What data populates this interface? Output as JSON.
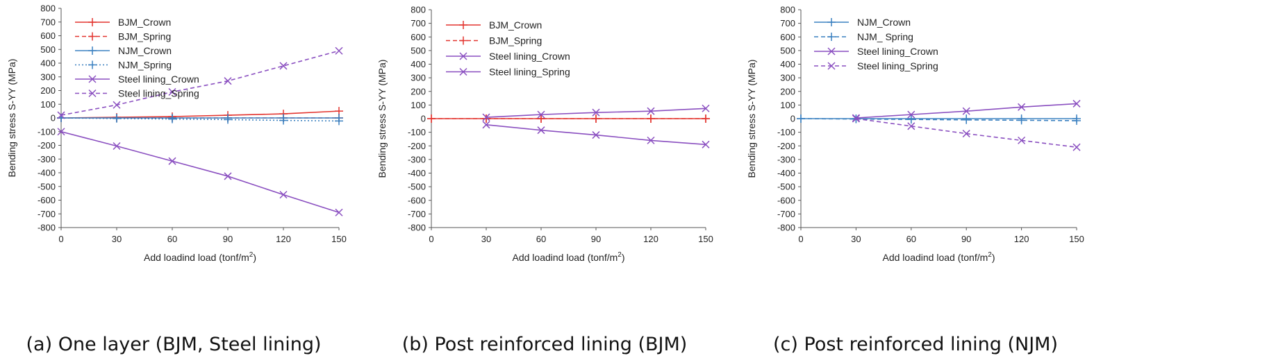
{
  "chart_data": [
    {
      "type": "line",
      "caption": "(a) One layer (BJM, Steel lining)",
      "xlabel": "Add loadind load (tonf/m",
      "xlabel_sup": "2",
      "xlabel_end": ")",
      "ylabel": "Bending stress S-YY (MPa)",
      "x": [
        0,
        30,
        60,
        90,
        120,
        150
      ],
      "xticks": [
        "0",
        "30",
        "60",
        "90",
        "120",
        "150"
      ],
      "ylim": [
        -800,
        800
      ],
      "yticks": [
        800,
        700,
        600,
        500,
        400,
        300,
        200,
        100,
        0,
        -100,
        -200,
        -300,
        -400,
        -500,
        -600,
        -700,
        -800
      ],
      "series": [
        {
          "name": "BJM_Crown",
          "values": [
            0,
            5,
            10,
            20,
            30,
            50
          ],
          "color": "#e3342f",
          "dash": "none",
          "marker": "plus"
        },
        {
          "name": "BJM_Spring",
          "values": [
            0,
            0,
            0,
            0,
            0,
            0
          ],
          "color": "#e3342f",
          "dash": "6,4",
          "marker": "plus"
        },
        {
          "name": "NJM_Crown",
          "values": [
            0,
            0,
            0,
            0,
            0,
            0
          ],
          "color": "#3a80c0",
          "dash": "none",
          "marker": "plus"
        },
        {
          "name": "NJM_Spring",
          "values": [
            0,
            -4,
            -8,
            -12,
            -18,
            -22
          ],
          "color": "#3a80c0",
          "dash": "2,3",
          "marker": "plus"
        },
        {
          "name": "Steel lining_Crown",
          "values": [
            -100,
            -205,
            -315,
            -425,
            -560,
            -690
          ],
          "color": "#8a4fc0",
          "dash": "none",
          "marker": "x"
        },
        {
          "name": "Steel lining_Spring",
          "values": [
            20,
            95,
            190,
            270,
            380,
            490
          ],
          "color": "#8a4fc0",
          "dash": "6,4",
          "marker": "x"
        }
      ]
    },
    {
      "type": "line",
      "caption": "(b) Post reinforced lining (BJM)",
      "xlabel": "Add loadind load (tonf/m",
      "xlabel_sup": "2",
      "xlabel_end": ")",
      "ylabel": "Bending stress S-YY (MPa)",
      "x": [
        0,
        30,
        60,
        90,
        120,
        150
      ],
      "xticks": [
        "0",
        "30",
        "60",
        "90",
        "120",
        "150"
      ],
      "ylim": [
        -800,
        800
      ],
      "yticks": [
        800,
        700,
        600,
        500,
        400,
        300,
        200,
        100,
        0,
        -100,
        -200,
        -300,
        -400,
        -500,
        -600,
        -700,
        -800
      ],
      "series": [
        {
          "name": "BJM_Crown",
          "values": [
            0,
            0,
            0,
            0,
            0,
            0
          ],
          "color": "#e3342f",
          "dash": "none",
          "marker": "plus"
        },
        {
          "name": "BJM_Spring",
          "values": [
            0,
            0,
            0,
            0,
            0,
            0
          ],
          "color": "#e3342f",
          "dash": "6,4",
          "marker": "plus"
        },
        {
          "name": "Steel lining_Crown",
          "x": [
            30,
            60,
            90,
            120,
            150
          ],
          "values": [
            10,
            30,
            45,
            55,
            75
          ],
          "color": "#8a4fc0",
          "dash": "none",
          "marker": "x"
        },
        {
          "name": "Steel lining_Spring",
          "x": [
            30,
            60,
            90,
            120,
            150
          ],
          "values": [
            -45,
            -85,
            -120,
            -160,
            -190
          ],
          "color": "#8a4fc0",
          "dash": "none",
          "marker": "x"
        }
      ]
    },
    {
      "type": "line",
      "caption": "(c) Post reinforced lining (NJM)",
      "xlabel": "Add loadind load (tonf/m",
      "xlabel_sup": "2",
      "xlabel_end": ")",
      "ylabel": "Bending stress S-YY (MPa)",
      "x": [
        0,
        30,
        60,
        90,
        120,
        150
      ],
      "xticks": [
        "0",
        "30",
        "60",
        "90",
        "120",
        "150"
      ],
      "ylim": [
        -800,
        800
      ],
      "yticks": [
        800,
        700,
        600,
        500,
        400,
        300,
        200,
        100,
        0,
        -100,
        -200,
        -300,
        -400,
        -500,
        -600,
        -700,
        -800
      ],
      "series": [
        {
          "name": "NJM_Crown",
          "values": [
            0,
            0,
            0,
            0,
            0,
            0
          ],
          "color": "#3a80c0",
          "dash": "none",
          "marker": "plus"
        },
        {
          "name": "NJM_ Spring",
          "values": [
            0,
            -3,
            -6,
            -9,
            -12,
            -15
          ],
          "color": "#3a80c0",
          "dash": "6,4",
          "marker": "plus"
        },
        {
          "name": "Steel lining_Crown",
          "x": [
            30,
            60,
            90,
            120,
            150
          ],
          "values": [
            5,
            30,
            55,
            85,
            110
          ],
          "color": "#8a4fc0",
          "dash": "none",
          "marker": "x"
        },
        {
          "name": "Steel lining_Spring",
          "x": [
            30,
            60,
            90,
            120,
            150
          ],
          "values": [
            0,
            -55,
            -110,
            -160,
            -210
          ],
          "color": "#8a4fc0",
          "dash": "6,4",
          "marker": "x"
        }
      ]
    }
  ]
}
